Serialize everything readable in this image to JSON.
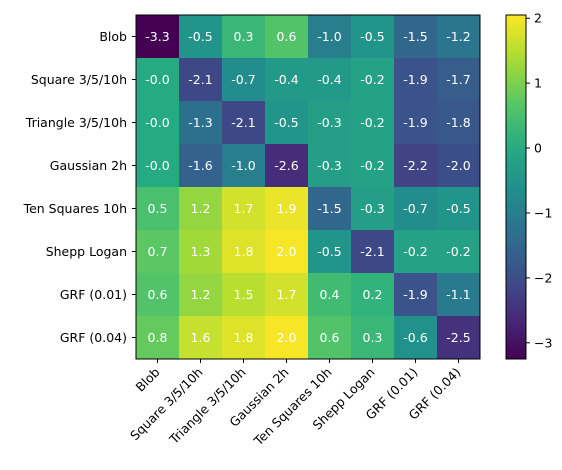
{
  "chart_data": {
    "type": "heatmap",
    "title": "",
    "xlabel": "",
    "ylabel": "",
    "rows": [
      "Blob",
      "Square 3/5/10h",
      "Triangle 3/5/10h",
      "Gaussian 2h",
      "Ten Squares 10h",
      "Shepp Logan",
      "GRF (0.01)",
      "GRF (0.04)"
    ],
    "columns": [
      "Blob",
      "Square 3/5/10h",
      "Triangle 3/5/10h",
      "Gaussian 2h",
      "Ten Squares 10h",
      "Shepp Logan",
      "GRF (0.01)",
      "GRF (0.04)"
    ],
    "values": [
      [
        -3.3,
        -0.5,
        0.3,
        0.6,
        -1.0,
        -0.5,
        -1.5,
        -1.2
      ],
      [
        -0.0,
        -2.1,
        -0.7,
        -0.4,
        -0.4,
        -0.2,
        -1.9,
        -1.7
      ],
      [
        -0.0,
        -1.3,
        -2.1,
        -0.5,
        -0.3,
        -0.2,
        -1.9,
        -1.8
      ],
      [
        -0.0,
        -1.6,
        -1.0,
        -2.6,
        -0.3,
        -0.2,
        -2.2,
        -2.0
      ],
      [
        0.5,
        1.2,
        1.7,
        1.9,
        -1.5,
        -0.3,
        -0.7,
        -0.5
      ],
      [
        0.7,
        1.3,
        1.8,
        2.0,
        -0.5,
        -2.1,
        -0.2,
        -0.2
      ],
      [
        0.6,
        1.2,
        1.5,
        1.7,
        0.4,
        0.2,
        -1.9,
        -1.1
      ],
      [
        0.8,
        1.6,
        1.8,
        2.0,
        0.6,
        0.3,
        -0.6,
        -2.5
      ]
    ],
    "value_labels": [
      [
        "-3.3",
        "-0.5",
        "0.3",
        "0.6",
        "-1.0",
        "-0.5",
        "-1.5",
        "-1.2"
      ],
      [
        "-0.0",
        "-2.1",
        "-0.7",
        "-0.4",
        "-0.4",
        "-0.2",
        "-1.9",
        "-1.7"
      ],
      [
        "-0.0",
        "-1.3",
        "-2.1",
        "-0.5",
        "-0.3",
        "-0.2",
        "-1.9",
        "-1.8"
      ],
      [
        "-0.0",
        "-1.6",
        "-1.0",
        "-2.6",
        "-0.3",
        "-0.2",
        "-2.2",
        "-2.0"
      ],
      [
        "0.5",
        "1.2",
        "1.7",
        "1.9",
        "-1.5",
        "-0.3",
        "-0.7",
        "-0.5"
      ],
      [
        "0.7",
        "1.3",
        "1.8",
        "2.0",
        "-0.5",
        "-2.1",
        "-0.2",
        "-0.2"
      ],
      [
        "0.6",
        "1.2",
        "1.5",
        "1.7",
        "0.4",
        "0.2",
        "-1.9",
        "-1.1"
      ],
      [
        "0.8",
        "1.6",
        "1.8",
        "2.0",
        "0.6",
        "0.3",
        "-0.6",
        "-2.5"
      ]
    ],
    "colormap": "viridis",
    "color_range": [
      -3.25,
      2.05
    ],
    "colorbar_ticks": [
      2,
      1,
      0,
      -1,
      -2,
      -3
    ],
    "colorbar_tick_labels": [
      "2",
      "1",
      "0",
      "−1",
      "−2",
      "−3"
    ],
    "label_color": "#ffffff",
    "grid": false,
    "legend": "none"
  }
}
